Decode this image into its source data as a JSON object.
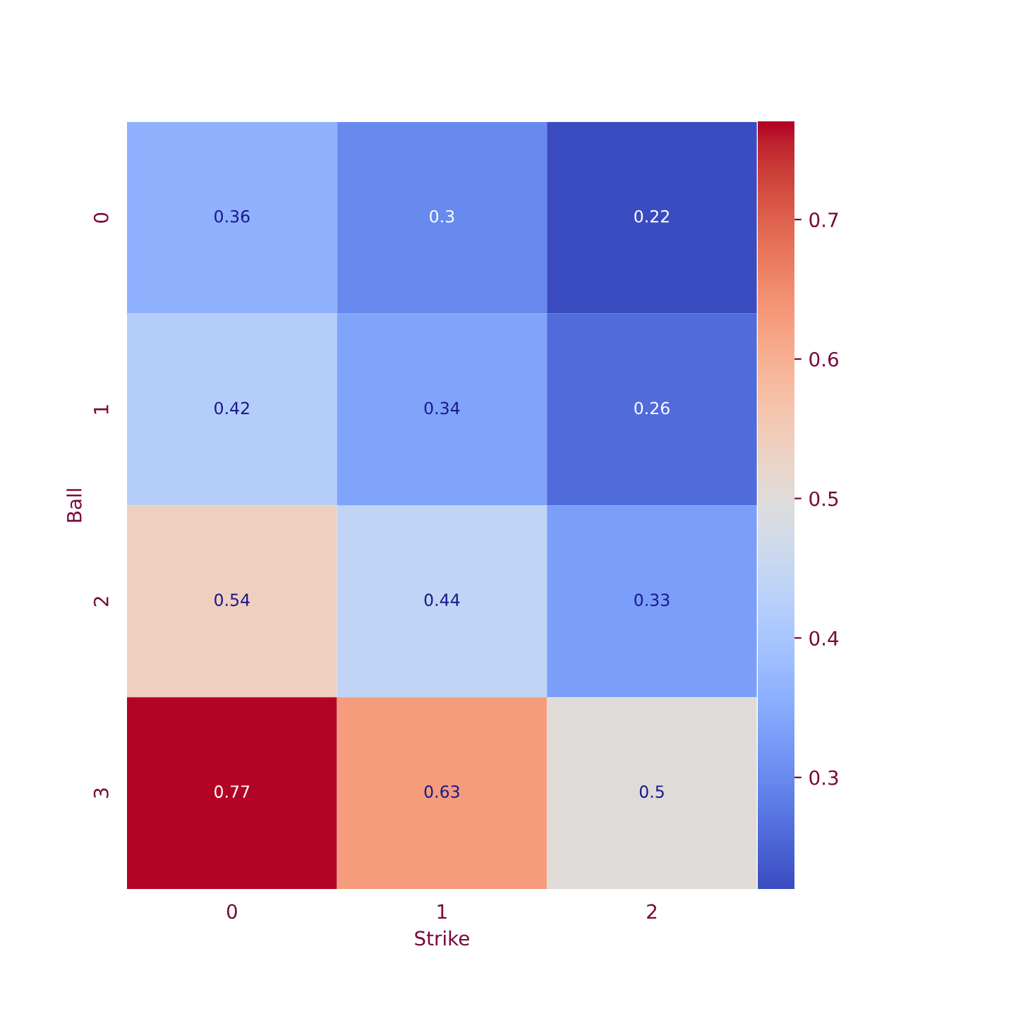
{
  "chart_data": {
    "type": "heatmap",
    "xlabel": "Strike",
    "ylabel": "Ball",
    "categories": [
      "0",
      "1",
      "2"
    ],
    "y_categories": [
      "0",
      "1",
      "2",
      "3"
    ],
    "cells": [
      [
        0.36,
        0.3,
        0.22
      ],
      [
        0.42,
        0.34,
        0.26
      ],
      [
        0.54,
        0.44,
        0.33
      ],
      [
        0.77,
        0.63,
        0.5
      ]
    ],
    "clim": [
      0.22,
      0.77
    ],
    "cticks": [
      0.3,
      0.4,
      0.5,
      0.6,
      0.7
    ],
    "data_labels": true
  }
}
